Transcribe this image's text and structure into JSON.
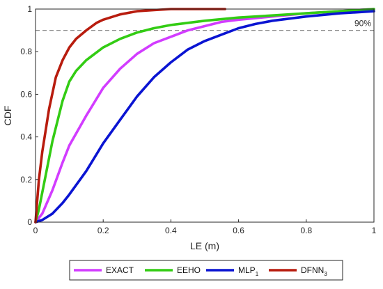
{
  "chart_data": {
    "type": "line",
    "xlabel": "LE (m)",
    "ylabel": "CDF",
    "xlim": [
      0,
      1
    ],
    "ylim": [
      0,
      1
    ],
    "xticks": [
      "0",
      "0.2",
      "0.4",
      "0.6",
      "0.8",
      "1"
    ],
    "yticks": [
      "0",
      "0.2",
      "0.4",
      "0.6",
      "0.8",
      "1"
    ],
    "grid": true,
    "legend_position": "bottom",
    "reference_line": {
      "y": 0.9,
      "label": "90%",
      "style": "dashed",
      "color": "#8c8c8c"
    },
    "series": [
      {
        "name": "EXACT",
        "color": "#d23cff",
        "x": [
          0,
          0.02,
          0.05,
          0.08,
          0.1,
          0.15,
          0.2,
          0.25,
          0.3,
          0.35,
          0.4,
          0.45,
          0.5,
          0.55,
          0.6,
          0.7,
          0.8,
          0.9,
          1.0
        ],
        "y": [
          0,
          0.04,
          0.15,
          0.28,
          0.36,
          0.5,
          0.63,
          0.72,
          0.79,
          0.84,
          0.87,
          0.9,
          0.92,
          0.94,
          0.95,
          0.965,
          0.98,
          0.99,
          1.0
        ]
      },
      {
        "name": "EEHO",
        "color": "#33cc14",
        "x": [
          0,
          0.01,
          0.03,
          0.05,
          0.08,
          0.1,
          0.12,
          0.15,
          0.2,
          0.25,
          0.3,
          0.35,
          0.4,
          0.5,
          0.6,
          0.7,
          0.8,
          0.9,
          1.0
        ],
        "y": [
          0,
          0.06,
          0.22,
          0.38,
          0.57,
          0.66,
          0.71,
          0.76,
          0.82,
          0.86,
          0.89,
          0.91,
          0.925,
          0.945,
          0.96,
          0.97,
          0.98,
          0.99,
          1.0
        ]
      },
      {
        "name": "MLP",
        "name_sub": "1",
        "color": "#0a14d2",
        "x": [
          0,
          0.02,
          0.05,
          0.08,
          0.1,
          0.15,
          0.2,
          0.25,
          0.3,
          0.35,
          0.4,
          0.45,
          0.5,
          0.55,
          0.6,
          0.65,
          0.7,
          0.8,
          0.9,
          1.0
        ],
        "y": [
          0,
          0.01,
          0.04,
          0.09,
          0.13,
          0.24,
          0.37,
          0.48,
          0.59,
          0.68,
          0.75,
          0.81,
          0.85,
          0.88,
          0.91,
          0.93,
          0.945,
          0.965,
          0.98,
          0.99
        ]
      },
      {
        "name": "DFNN",
        "name_sub": "3",
        "color": "#b81c0e",
        "x": [
          0,
          0.005,
          0.01,
          0.02,
          0.04,
          0.06,
          0.08,
          0.1,
          0.12,
          0.15,
          0.18,
          0.2,
          0.25,
          0.3,
          0.35,
          0.4,
          0.45,
          0.5,
          0.56
        ],
        "y": [
          0,
          0.1,
          0.2,
          0.33,
          0.53,
          0.68,
          0.76,
          0.82,
          0.86,
          0.9,
          0.935,
          0.95,
          0.975,
          0.99,
          0.995,
          1.0,
          1.0,
          1.0,
          1.0
        ]
      }
    ]
  }
}
